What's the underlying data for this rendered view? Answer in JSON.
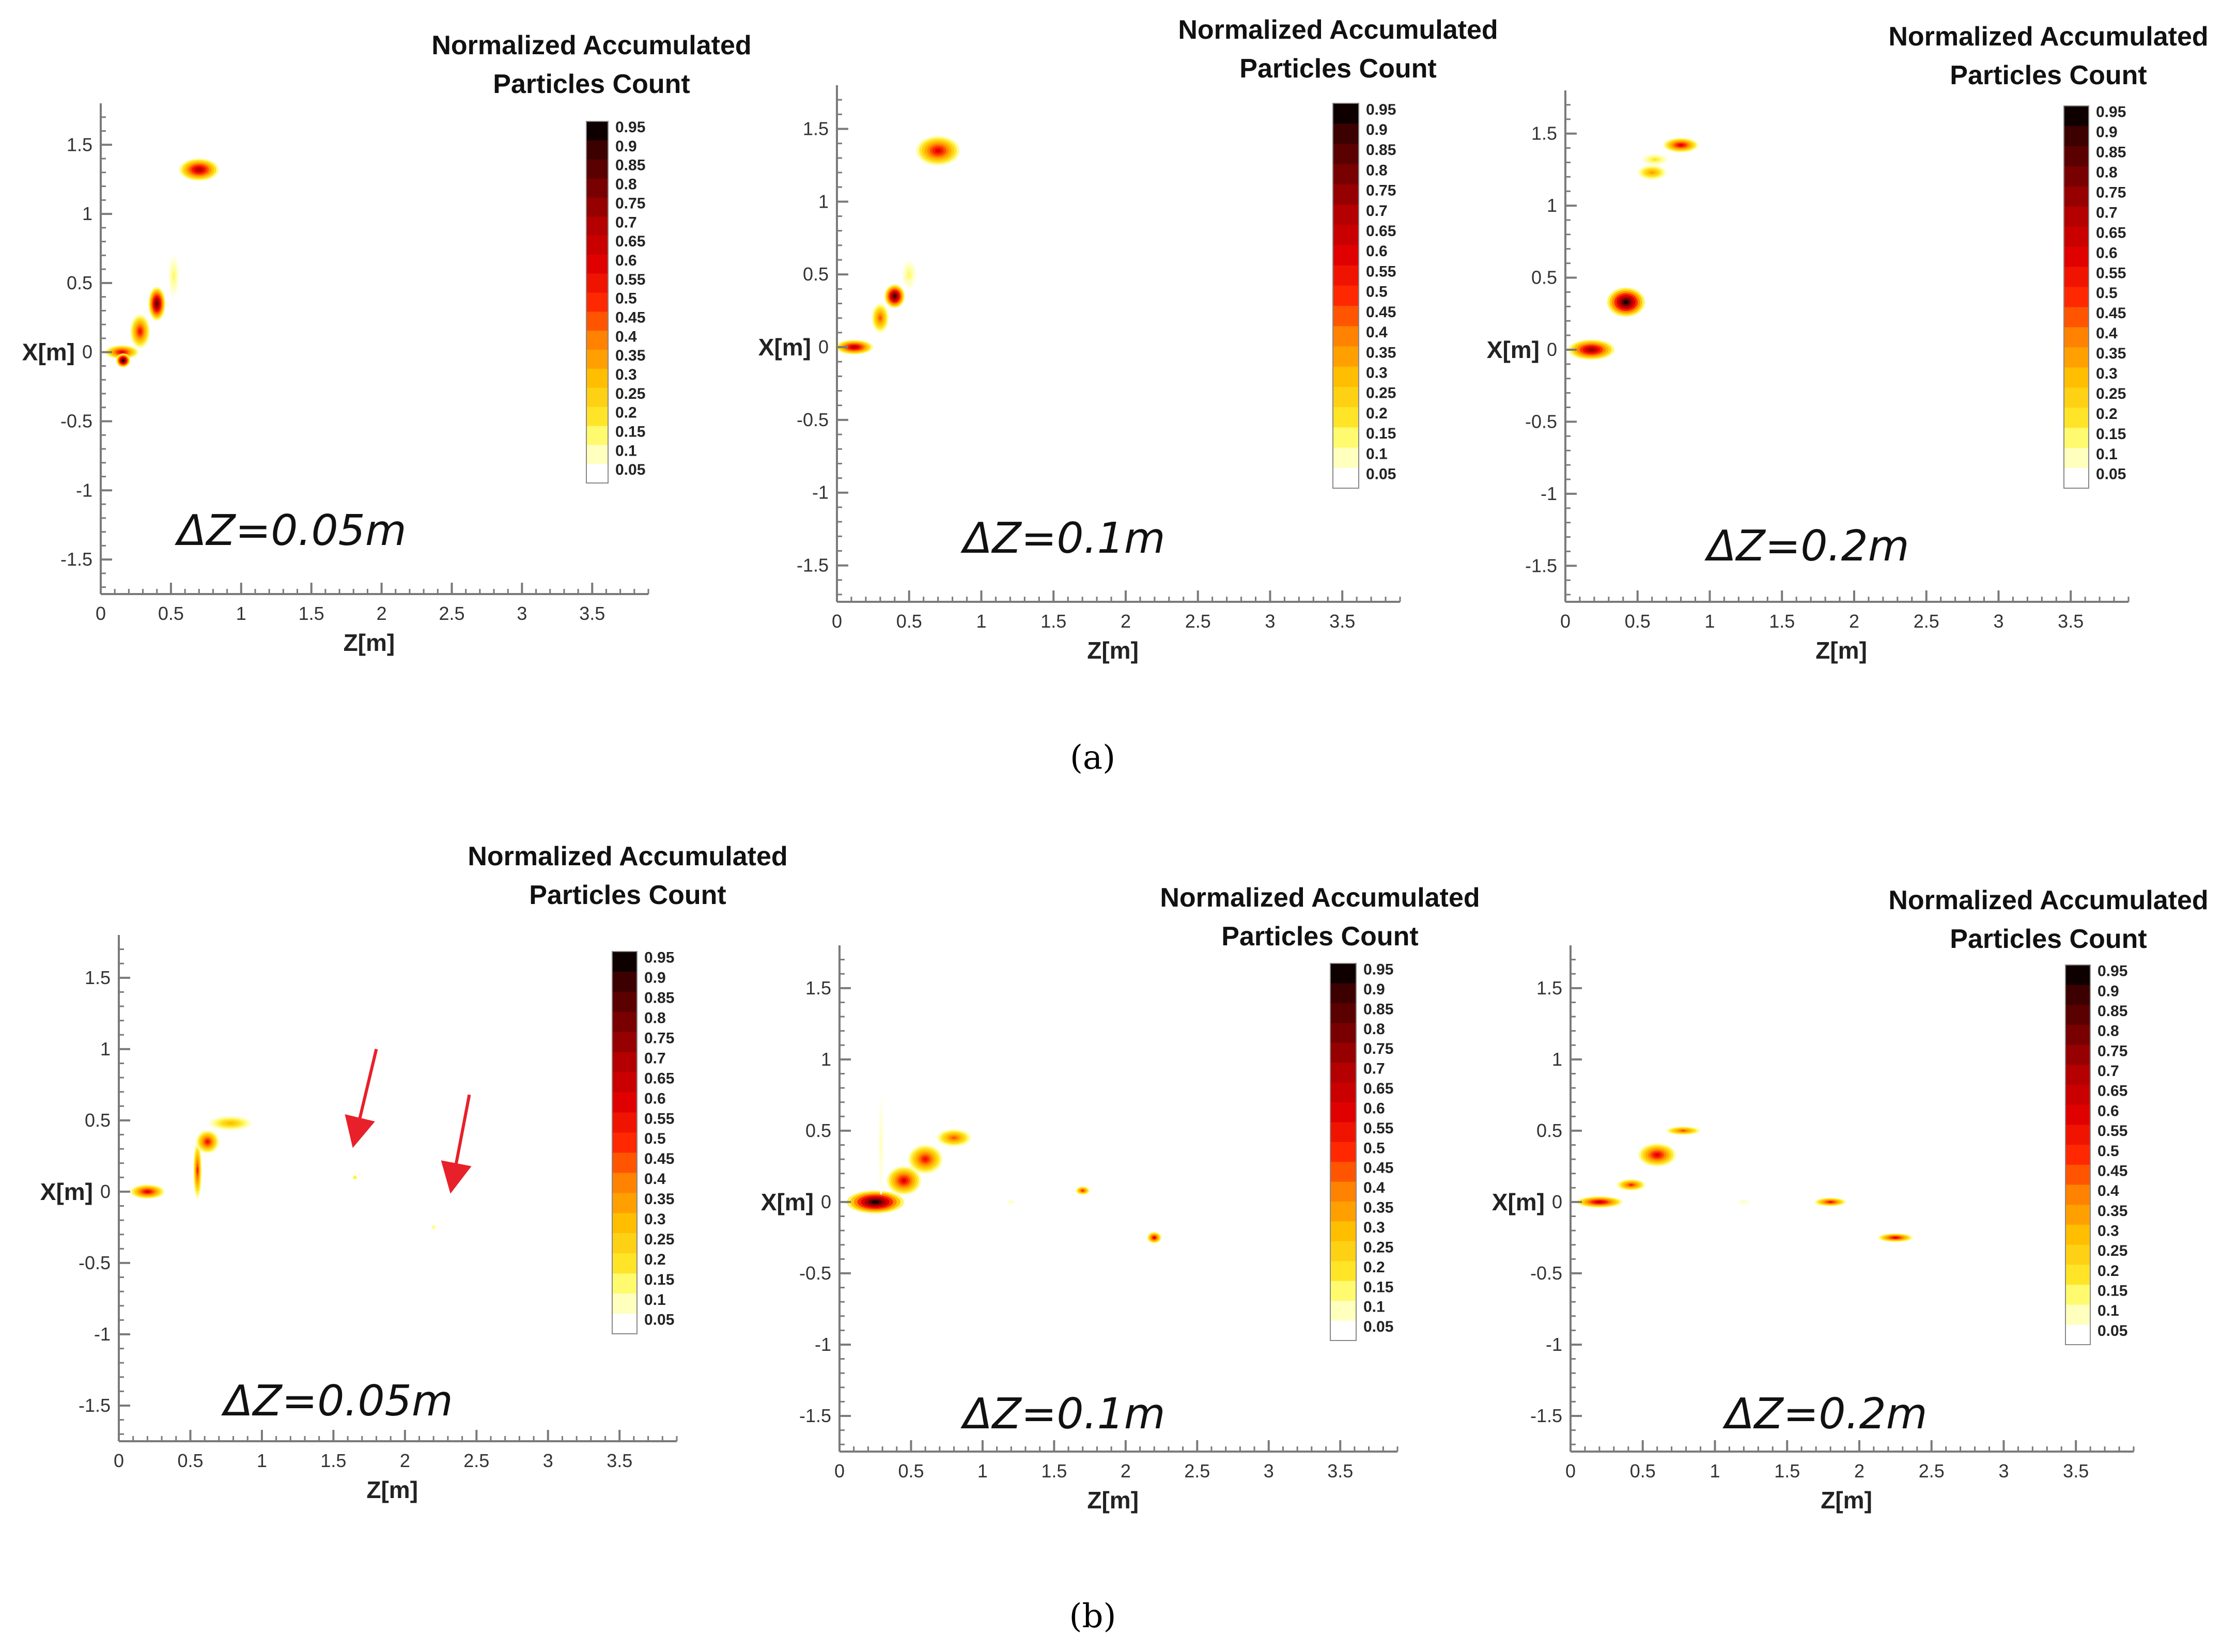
{
  "figure": {
    "captions": [
      "(a)",
      "(b)"
    ]
  },
  "chart_data": [
    {
      "type": "heatmap",
      "row": "a",
      "title": "Normalized Accumulated Particles Count",
      "annotation": "ΔZ=0.05m",
      "xlabel": "Z[m]",
      "ylabel": "X[m]",
      "xlim": [
        0,
        3.9
      ],
      "ylim": [
        -1.75,
        1.8
      ],
      "xticks": [
        "0",
        "0.5",
        "1",
        "1.5",
        "2",
        "2.5",
        "3",
        "3.5"
      ],
      "yticks": [
        "-1.5",
        "-1",
        "-0.5",
        "0",
        "0.5",
        "1",
        "1.5"
      ],
      "colorbar_levels": [
        "0.05",
        "0.1",
        "0.15",
        "0.2",
        "0.25",
        "0.3",
        "0.35",
        "0.4",
        "0.45",
        "0.5",
        "0.55",
        "0.6",
        "0.65",
        "0.7",
        "0.75",
        "0.8",
        "0.85",
        "0.9",
        "0.95"
      ],
      "blobs": [
        {
          "z": 0.15,
          "x": 0.0,
          "rz": 0.12,
          "rx": 0.05,
          "v": 0.6
        },
        {
          "z": 0.28,
          "x": 0.15,
          "rz": 0.07,
          "rx": 0.12,
          "v": 0.55
        },
        {
          "z": 0.4,
          "x": 0.35,
          "rz": 0.06,
          "rx": 0.12,
          "v": 0.85
        },
        {
          "z": 0.52,
          "x": 0.55,
          "rz": 0.04,
          "rx": 0.15,
          "v": 0.15
        },
        {
          "z": 0.7,
          "x": 1.32,
          "rz": 0.14,
          "rx": 0.08,
          "v": 0.7
        },
        {
          "z": 0.16,
          "x": -0.06,
          "rz": 0.05,
          "rx": 0.05,
          "v": 0.95
        }
      ]
    },
    {
      "type": "heatmap",
      "row": "a",
      "title": "Normalized Accumulated Particles Count",
      "annotation": "ΔZ=0.1m",
      "xlabel": "Z[m]",
      "ylabel": "X[m]",
      "xlim": [
        0,
        3.9
      ],
      "ylim": [
        -1.75,
        1.8
      ],
      "xticks": [
        "0",
        "0.5",
        "1",
        "1.5",
        "2",
        "2.5",
        "3",
        "3.5"
      ],
      "yticks": [
        "-1.5",
        "-1",
        "-0.5",
        "0",
        "0.5",
        "1",
        "1.5"
      ],
      "colorbar_levels": [
        "0.05",
        "0.1",
        "0.15",
        "0.2",
        "0.25",
        "0.3",
        "0.35",
        "0.4",
        "0.45",
        "0.5",
        "0.55",
        "0.6",
        "0.65",
        "0.7",
        "0.75",
        "0.8",
        "0.85",
        "0.9",
        "0.95"
      ],
      "blobs": [
        {
          "z": 0.12,
          "x": 0.0,
          "rz": 0.13,
          "rx": 0.05,
          "v": 0.7
        },
        {
          "z": 0.3,
          "x": 0.2,
          "rz": 0.06,
          "rx": 0.1,
          "v": 0.45
        },
        {
          "z": 0.4,
          "x": 0.35,
          "rz": 0.07,
          "rx": 0.08,
          "v": 0.9
        },
        {
          "z": 0.5,
          "x": 0.5,
          "rz": 0.05,
          "rx": 0.1,
          "v": 0.15
        },
        {
          "z": 0.7,
          "x": 1.35,
          "rz": 0.15,
          "rx": 0.1,
          "v": 0.6
        }
      ]
    },
    {
      "type": "heatmap",
      "row": "a",
      "title": "Normalized Accumulated Particles Count",
      "annotation": "ΔZ=0.2m",
      "xlabel": "Z[m]",
      "ylabel": "X[m]",
      "xlim": [
        0,
        3.9
      ],
      "ylim": [
        -1.75,
        1.8
      ],
      "xticks": [
        "0",
        "0.5",
        "1",
        "1.5",
        "2",
        "2.5",
        "3",
        "3.5"
      ],
      "yticks": [
        "-1.5",
        "-1",
        "-0.5",
        "0",
        "0.5",
        "1",
        "1.5"
      ],
      "colorbar_levels": [
        "0.05",
        "0.1",
        "0.15",
        "0.2",
        "0.25",
        "0.3",
        "0.35",
        "0.4",
        "0.45",
        "0.5",
        "0.55",
        "0.6",
        "0.65",
        "0.7",
        "0.75",
        "0.8",
        "0.85",
        "0.9",
        "0.95"
      ],
      "blobs": [
        {
          "z": 0.18,
          "x": 0.0,
          "rz": 0.16,
          "rx": 0.07,
          "v": 0.75
        },
        {
          "z": 0.42,
          "x": 0.33,
          "rz": 0.13,
          "rx": 0.1,
          "v": 0.95
        },
        {
          "z": 0.6,
          "x": 1.23,
          "rz": 0.1,
          "rx": 0.05,
          "v": 0.35
        },
        {
          "z": 0.62,
          "x": 1.32,
          "rz": 0.09,
          "rx": 0.04,
          "v": 0.2
        },
        {
          "z": 0.8,
          "x": 1.42,
          "rz": 0.12,
          "rx": 0.05,
          "v": 0.6
        }
      ]
    },
    {
      "type": "heatmap",
      "row": "b",
      "title": "Normalized Accumulated Particles Count",
      "annotation": "ΔZ=0.05m",
      "xlabel": "Z[m]",
      "ylabel": "X[m]",
      "xlim": [
        0,
        3.9
      ],
      "ylim": [
        -1.75,
        1.8
      ],
      "xticks": [
        "0",
        "0.5",
        "1",
        "1.5",
        "2",
        "2.5",
        "3",
        "3.5"
      ],
      "yticks": [
        "-1.5",
        "-1",
        "-0.5",
        "0",
        "0.5",
        "1",
        "1.5"
      ],
      "colorbar_levels": [
        "0.05",
        "0.1",
        "0.15",
        "0.2",
        "0.25",
        "0.3",
        "0.35",
        "0.4",
        "0.45",
        "0.5",
        "0.55",
        "0.6",
        "0.65",
        "0.7",
        "0.75",
        "0.8",
        "0.85",
        "0.9",
        "0.95"
      ],
      "blobs": [
        {
          "z": 0.2,
          "x": 0.0,
          "rz": 0.12,
          "rx": 0.05,
          "v": 0.6
        },
        {
          "z": 0.55,
          "x": 0.15,
          "rz": 0.03,
          "rx": 0.2,
          "v": 0.5
        },
        {
          "z": 0.62,
          "x": 0.35,
          "rz": 0.08,
          "rx": 0.08,
          "v": 0.55
        },
        {
          "z": 0.78,
          "x": 0.48,
          "rz": 0.15,
          "rx": 0.05,
          "v": 0.3
        },
        {
          "z": 1.65,
          "x": 0.1,
          "rz": 0.02,
          "rx": 0.02,
          "v": 0.2
        },
        {
          "z": 2.2,
          "x": -0.25,
          "rz": 0.02,
          "rx": 0.02,
          "v": 0.15
        }
      ],
      "arrows": [
        {
          "from": [
            1.8,
            1.0
          ],
          "to": [
            1.65,
            0.37
          ]
        },
        {
          "from": [
            2.45,
            0.68
          ],
          "to": [
            2.33,
            0.05
          ]
        }
      ]
    },
    {
      "type": "heatmap",
      "row": "b",
      "title": "Normalized Accumulated Particles Count",
      "annotation": "ΔZ=0.1m",
      "xlabel": "Z[m]",
      "ylabel": "X[m]",
      "xlim": [
        0,
        3.9
      ],
      "ylim": [
        -1.75,
        1.8
      ],
      "xticks": [
        "0",
        "0.5",
        "1",
        "1.5",
        "2",
        "2.5",
        "3",
        "3.5"
      ],
      "yticks": [
        "-1.5",
        "-1",
        "-0.5",
        "0",
        "0.5",
        "1",
        "1.5"
      ],
      "colorbar_levels": [
        "0.05",
        "0.1",
        "0.15",
        "0.2",
        "0.25",
        "0.3",
        "0.35",
        "0.4",
        "0.45",
        "0.5",
        "0.55",
        "0.6",
        "0.65",
        "0.7",
        "0.75",
        "0.8",
        "0.85",
        "0.9",
        "0.95"
      ],
      "blobs": [
        {
          "z": 0.25,
          "x": 0.0,
          "rz": 0.2,
          "rx": 0.08,
          "v": 0.95
        },
        {
          "z": 0.45,
          "x": 0.15,
          "rz": 0.12,
          "rx": 0.1,
          "v": 0.6
        },
        {
          "z": 0.6,
          "x": 0.3,
          "rz": 0.12,
          "rx": 0.1,
          "v": 0.55
        },
        {
          "z": 0.8,
          "x": 0.45,
          "rz": 0.12,
          "rx": 0.06,
          "v": 0.45
        },
        {
          "z": 0.29,
          "x": 0.4,
          "rz": 0.02,
          "rx": 0.35,
          "v": 0.1
        },
        {
          "z": 1.7,
          "x": 0.08,
          "rz": 0.05,
          "rx": 0.03,
          "v": 0.5
        },
        {
          "z": 1.2,
          "x": 0.0,
          "rz": 0.03,
          "rx": 0.02,
          "v": 0.1
        },
        {
          "z": 2.2,
          "x": -0.25,
          "rz": 0.05,
          "rx": 0.04,
          "v": 0.6
        }
      ]
    },
    {
      "type": "heatmap",
      "row": "b",
      "title": "Normalized Accumulated Particles Count",
      "annotation": "ΔZ=0.2m",
      "xlabel": "Z[m]",
      "ylabel": "X[m]",
      "xlim": [
        0,
        3.9
      ],
      "ylim": [
        -1.75,
        1.8
      ],
      "xticks": [
        "0",
        "0.5",
        "1",
        "1.5",
        "2",
        "2.5",
        "3",
        "3.5"
      ],
      "yticks": [
        "-1.5",
        "-1",
        "-0.5",
        "0",
        "0.5",
        "1",
        "1.5"
      ],
      "colorbar_levels": [
        "0.05",
        "0.1",
        "0.15",
        "0.2",
        "0.25",
        "0.3",
        "0.35",
        "0.4",
        "0.45",
        "0.5",
        "0.55",
        "0.6",
        "0.65",
        "0.7",
        "0.75",
        "0.8",
        "0.85",
        "0.9",
        "0.95"
      ],
      "blobs": [
        {
          "z": 0.2,
          "x": 0.0,
          "rz": 0.16,
          "rx": 0.04,
          "v": 0.65
        },
        {
          "z": 0.42,
          "x": 0.12,
          "rz": 0.1,
          "rx": 0.04,
          "v": 0.5
        },
        {
          "z": 0.6,
          "x": 0.33,
          "rz": 0.13,
          "rx": 0.08,
          "v": 0.6
        },
        {
          "z": 0.78,
          "x": 0.5,
          "rz": 0.12,
          "rx": 0.03,
          "v": 0.45
        },
        {
          "z": 1.2,
          "x": 0.0,
          "rz": 0.05,
          "rx": 0.02,
          "v": 0.1
        },
        {
          "z": 1.8,
          "x": 0.0,
          "rz": 0.11,
          "rx": 0.03,
          "v": 0.55
        },
        {
          "z": 2.25,
          "x": -0.25,
          "rz": 0.12,
          "rx": 0.03,
          "v": 0.6
        }
      ]
    }
  ]
}
